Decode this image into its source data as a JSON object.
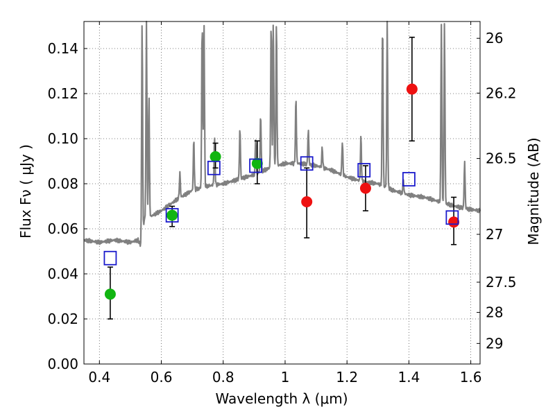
{
  "chart_data": {
    "type": "scatter",
    "xlabel": "Wavelength  λ (μm)",
    "ylabel": "Flux  Fν  ( μJy )",
    "ylabel_right": "Magnitude (AB)",
    "xlim": [
      0.35,
      1.63
    ],
    "ylim": [
      0.0,
      0.152
    ],
    "grid": true,
    "x_ticks": [
      0.4,
      0.6,
      0.8,
      1.0,
      1.2,
      1.4,
      1.6
    ],
    "x_tick_labels": [
      "0.4",
      "0.6",
      "0.8",
      "1",
      "1.2",
      "1.4",
      "1.6"
    ],
    "y_ticks": [
      0.0,
      0.02,
      0.04,
      0.06,
      0.08,
      0.1,
      0.12,
      0.14
    ],
    "y_tick_labels": [
      "0.00",
      "0.02",
      "0.04",
      "0.06",
      "0.08",
      "0.10",
      "0.12",
      "0.14"
    ],
    "mag_ticks": [
      {
        "label": "26",
        "mag": 26.0
      },
      {
        "label": "26.2",
        "mag": 26.2
      },
      {
        "label": "26.5",
        "mag": 26.5
      },
      {
        "label": "27",
        "mag": 27.0
      },
      {
        "label": "27.5",
        "mag": 27.5
      },
      {
        "label": "28",
        "mag": 28.0
      },
      {
        "label": "29",
        "mag": 29.0
      }
    ],
    "series": [
      {
        "kind": "points",
        "marker": "circle",
        "color": "#11b511",
        "points": [
          {
            "x": 0.435,
            "y": 0.031,
            "err_low": 0.02,
            "err_high": 0.043
          },
          {
            "x": 0.635,
            "y": 0.066,
            "err_low": 0.061,
            "err_high": 0.07
          },
          {
            "x": 0.775,
            "y": 0.092,
            "err_low": 0.087,
            "err_high": 0.098
          },
          {
            "x": 0.91,
            "y": 0.089,
            "err_low": 0.08,
            "err_high": 0.099
          }
        ]
      },
      {
        "kind": "points",
        "marker": "circle",
        "color": "#ee1111",
        "points": [
          {
            "x": 1.07,
            "y": 0.072,
            "err_low": 0.056,
            "err_high": 0.087
          },
          {
            "x": 1.26,
            "y": 0.078,
            "err_low": 0.068,
            "err_high": 0.088
          },
          {
            "x": 1.41,
            "y": 0.122,
            "err_low": 0.099,
            "err_high": 0.145
          },
          {
            "x": 1.545,
            "y": 0.063,
            "err_low": 0.053,
            "err_high": 0.074
          }
        ]
      },
      {
        "kind": "points",
        "marker": "open-square",
        "color": "#1a1acc",
        "points": [
          {
            "x": 0.435,
            "y": 0.047
          },
          {
            "x": 0.635,
            "y": 0.066
          },
          {
            "x": 0.77,
            "y": 0.087
          },
          {
            "x": 0.905,
            "y": 0.088
          },
          {
            "x": 1.07,
            "y": 0.089
          },
          {
            "x": 1.255,
            "y": 0.086
          },
          {
            "x": 1.4,
            "y": 0.082
          },
          {
            "x": 1.54,
            "y": 0.065
          }
        ]
      },
      {
        "kind": "line",
        "color": "#808080",
        "continuum": [
          [
            0.35,
            0.055
          ],
          [
            0.4,
            0.054
          ],
          [
            0.45,
            0.055
          ],
          [
            0.5,
            0.054
          ],
          [
            0.525,
            0.055
          ],
          [
            0.535,
            0.052
          ],
          [
            0.545,
            0.064
          ],
          [
            0.6,
            0.068
          ],
          [
            0.65,
            0.073
          ],
          [
            0.7,
            0.077
          ],
          [
            0.75,
            0.079
          ],
          [
            0.8,
            0.08
          ],
          [
            0.85,
            0.082
          ],
          [
            0.9,
            0.084
          ],
          [
            0.95,
            0.087
          ],
          [
            1.0,
            0.089
          ],
          [
            1.05,
            0.089
          ],
          [
            1.1,
            0.088
          ],
          [
            1.15,
            0.086
          ],
          [
            1.2,
            0.083
          ],
          [
            1.25,
            0.081
          ],
          [
            1.3,
            0.08
          ],
          [
            1.35,
            0.077
          ],
          [
            1.4,
            0.075
          ],
          [
            1.45,
            0.074
          ],
          [
            1.5,
            0.072
          ],
          [
            1.55,
            0.07
          ],
          [
            1.58,
            0.069
          ],
          [
            1.63,
            0.068
          ]
        ],
        "lines": [
          {
            "x": 0.538,
            "peak": 0.152
          },
          {
            "x": 0.552,
            "peak": 0.152
          },
          {
            "x": 0.56,
            "peak": 0.12
          },
          {
            "x": 0.66,
            "peak": 0.085
          },
          {
            "x": 0.705,
            "peak": 0.1
          },
          {
            "x": 0.732,
            "peak": 0.152
          },
          {
            "x": 0.738,
            "peak": 0.152
          },
          {
            "x": 0.772,
            "peak": 0.1
          },
          {
            "x": 0.854,
            "peak": 0.105
          },
          {
            "x": 0.905,
            "peak": 0.1
          },
          {
            "x": 0.921,
            "peak": 0.111
          },
          {
            "x": 0.955,
            "peak": 0.152
          },
          {
            "x": 0.962,
            "peak": 0.152
          },
          {
            "x": 0.972,
            "peak": 0.152
          },
          {
            "x": 1.035,
            "peak": 0.118
          },
          {
            "x": 1.075,
            "peak": 0.104
          },
          {
            "x": 1.12,
            "peak": 0.096
          },
          {
            "x": 1.185,
            "peak": 0.099
          },
          {
            "x": 1.245,
            "peak": 0.101
          },
          {
            "x": 1.315,
            "peak": 0.152
          },
          {
            "x": 1.33,
            "peak": 0.152
          },
          {
            "x": 1.382,
            "peak": 0.082
          },
          {
            "x": 1.505,
            "peak": 0.152
          },
          {
            "x": 1.515,
            "peak": 0.152
          },
          {
            "x": 1.58,
            "peak": 0.09
          }
        ]
      }
    ]
  }
}
